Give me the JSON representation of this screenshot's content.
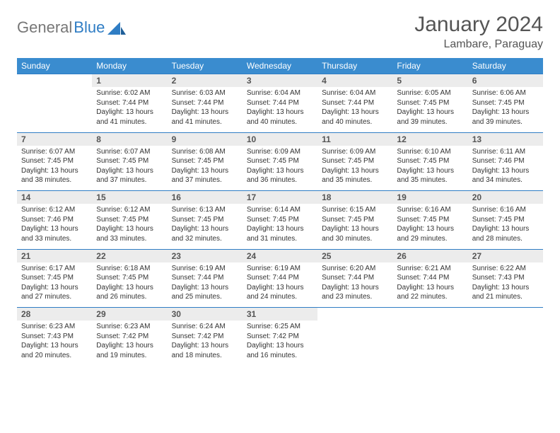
{
  "brand": {
    "part1": "General",
    "part2": "Blue"
  },
  "title": "January 2024",
  "location": "Lambare, Paraguay",
  "colors": {
    "header_bg": "#3a8ccf",
    "header_text": "#ffffff",
    "daynum_bg": "#ececec",
    "row_divider": "#2f7dc4",
    "body_text": "#333333",
    "title_text": "#555555",
    "brand_gray": "#777777",
    "brand_blue": "#2f7dc4"
  },
  "weekdays": [
    "Sunday",
    "Monday",
    "Tuesday",
    "Wednesday",
    "Thursday",
    "Friday",
    "Saturday"
  ],
  "weeks": [
    [
      null,
      {
        "n": "1",
        "sunrise": "6:02 AM",
        "sunset": "7:44 PM",
        "daylight": "13 hours and 41 minutes."
      },
      {
        "n": "2",
        "sunrise": "6:03 AM",
        "sunset": "7:44 PM",
        "daylight": "13 hours and 41 minutes."
      },
      {
        "n": "3",
        "sunrise": "6:04 AM",
        "sunset": "7:44 PM",
        "daylight": "13 hours and 40 minutes."
      },
      {
        "n": "4",
        "sunrise": "6:04 AM",
        "sunset": "7:44 PM",
        "daylight": "13 hours and 40 minutes."
      },
      {
        "n": "5",
        "sunrise": "6:05 AM",
        "sunset": "7:45 PM",
        "daylight": "13 hours and 39 minutes."
      },
      {
        "n": "6",
        "sunrise": "6:06 AM",
        "sunset": "7:45 PM",
        "daylight": "13 hours and 39 minutes."
      }
    ],
    [
      {
        "n": "7",
        "sunrise": "6:07 AM",
        "sunset": "7:45 PM",
        "daylight": "13 hours and 38 minutes."
      },
      {
        "n": "8",
        "sunrise": "6:07 AM",
        "sunset": "7:45 PM",
        "daylight": "13 hours and 37 minutes."
      },
      {
        "n": "9",
        "sunrise": "6:08 AM",
        "sunset": "7:45 PM",
        "daylight": "13 hours and 37 minutes."
      },
      {
        "n": "10",
        "sunrise": "6:09 AM",
        "sunset": "7:45 PM",
        "daylight": "13 hours and 36 minutes."
      },
      {
        "n": "11",
        "sunrise": "6:09 AM",
        "sunset": "7:45 PM",
        "daylight": "13 hours and 35 minutes."
      },
      {
        "n": "12",
        "sunrise": "6:10 AM",
        "sunset": "7:45 PM",
        "daylight": "13 hours and 35 minutes."
      },
      {
        "n": "13",
        "sunrise": "6:11 AM",
        "sunset": "7:46 PM",
        "daylight": "13 hours and 34 minutes."
      }
    ],
    [
      {
        "n": "14",
        "sunrise": "6:12 AM",
        "sunset": "7:46 PM",
        "daylight": "13 hours and 33 minutes."
      },
      {
        "n": "15",
        "sunrise": "6:12 AM",
        "sunset": "7:45 PM",
        "daylight": "13 hours and 33 minutes."
      },
      {
        "n": "16",
        "sunrise": "6:13 AM",
        "sunset": "7:45 PM",
        "daylight": "13 hours and 32 minutes."
      },
      {
        "n": "17",
        "sunrise": "6:14 AM",
        "sunset": "7:45 PM",
        "daylight": "13 hours and 31 minutes."
      },
      {
        "n": "18",
        "sunrise": "6:15 AM",
        "sunset": "7:45 PM",
        "daylight": "13 hours and 30 minutes."
      },
      {
        "n": "19",
        "sunrise": "6:16 AM",
        "sunset": "7:45 PM",
        "daylight": "13 hours and 29 minutes."
      },
      {
        "n": "20",
        "sunrise": "6:16 AM",
        "sunset": "7:45 PM",
        "daylight": "13 hours and 28 minutes."
      }
    ],
    [
      {
        "n": "21",
        "sunrise": "6:17 AM",
        "sunset": "7:45 PM",
        "daylight": "13 hours and 27 minutes."
      },
      {
        "n": "22",
        "sunrise": "6:18 AM",
        "sunset": "7:45 PM",
        "daylight": "13 hours and 26 minutes."
      },
      {
        "n": "23",
        "sunrise": "6:19 AM",
        "sunset": "7:44 PM",
        "daylight": "13 hours and 25 minutes."
      },
      {
        "n": "24",
        "sunrise": "6:19 AM",
        "sunset": "7:44 PM",
        "daylight": "13 hours and 24 minutes."
      },
      {
        "n": "25",
        "sunrise": "6:20 AM",
        "sunset": "7:44 PM",
        "daylight": "13 hours and 23 minutes."
      },
      {
        "n": "26",
        "sunrise": "6:21 AM",
        "sunset": "7:44 PM",
        "daylight": "13 hours and 22 minutes."
      },
      {
        "n": "27",
        "sunrise": "6:22 AM",
        "sunset": "7:43 PM",
        "daylight": "13 hours and 21 minutes."
      }
    ],
    [
      {
        "n": "28",
        "sunrise": "6:23 AM",
        "sunset": "7:43 PM",
        "daylight": "13 hours and 20 minutes."
      },
      {
        "n": "29",
        "sunrise": "6:23 AM",
        "sunset": "7:42 PM",
        "daylight": "13 hours and 19 minutes."
      },
      {
        "n": "30",
        "sunrise": "6:24 AM",
        "sunset": "7:42 PM",
        "daylight": "13 hours and 18 minutes."
      },
      {
        "n": "31",
        "sunrise": "6:25 AM",
        "sunset": "7:42 PM",
        "daylight": "13 hours and 16 minutes."
      },
      null,
      null,
      null
    ]
  ],
  "labels": {
    "sunrise": "Sunrise:",
    "sunset": "Sunset:",
    "daylight": "Daylight:"
  }
}
